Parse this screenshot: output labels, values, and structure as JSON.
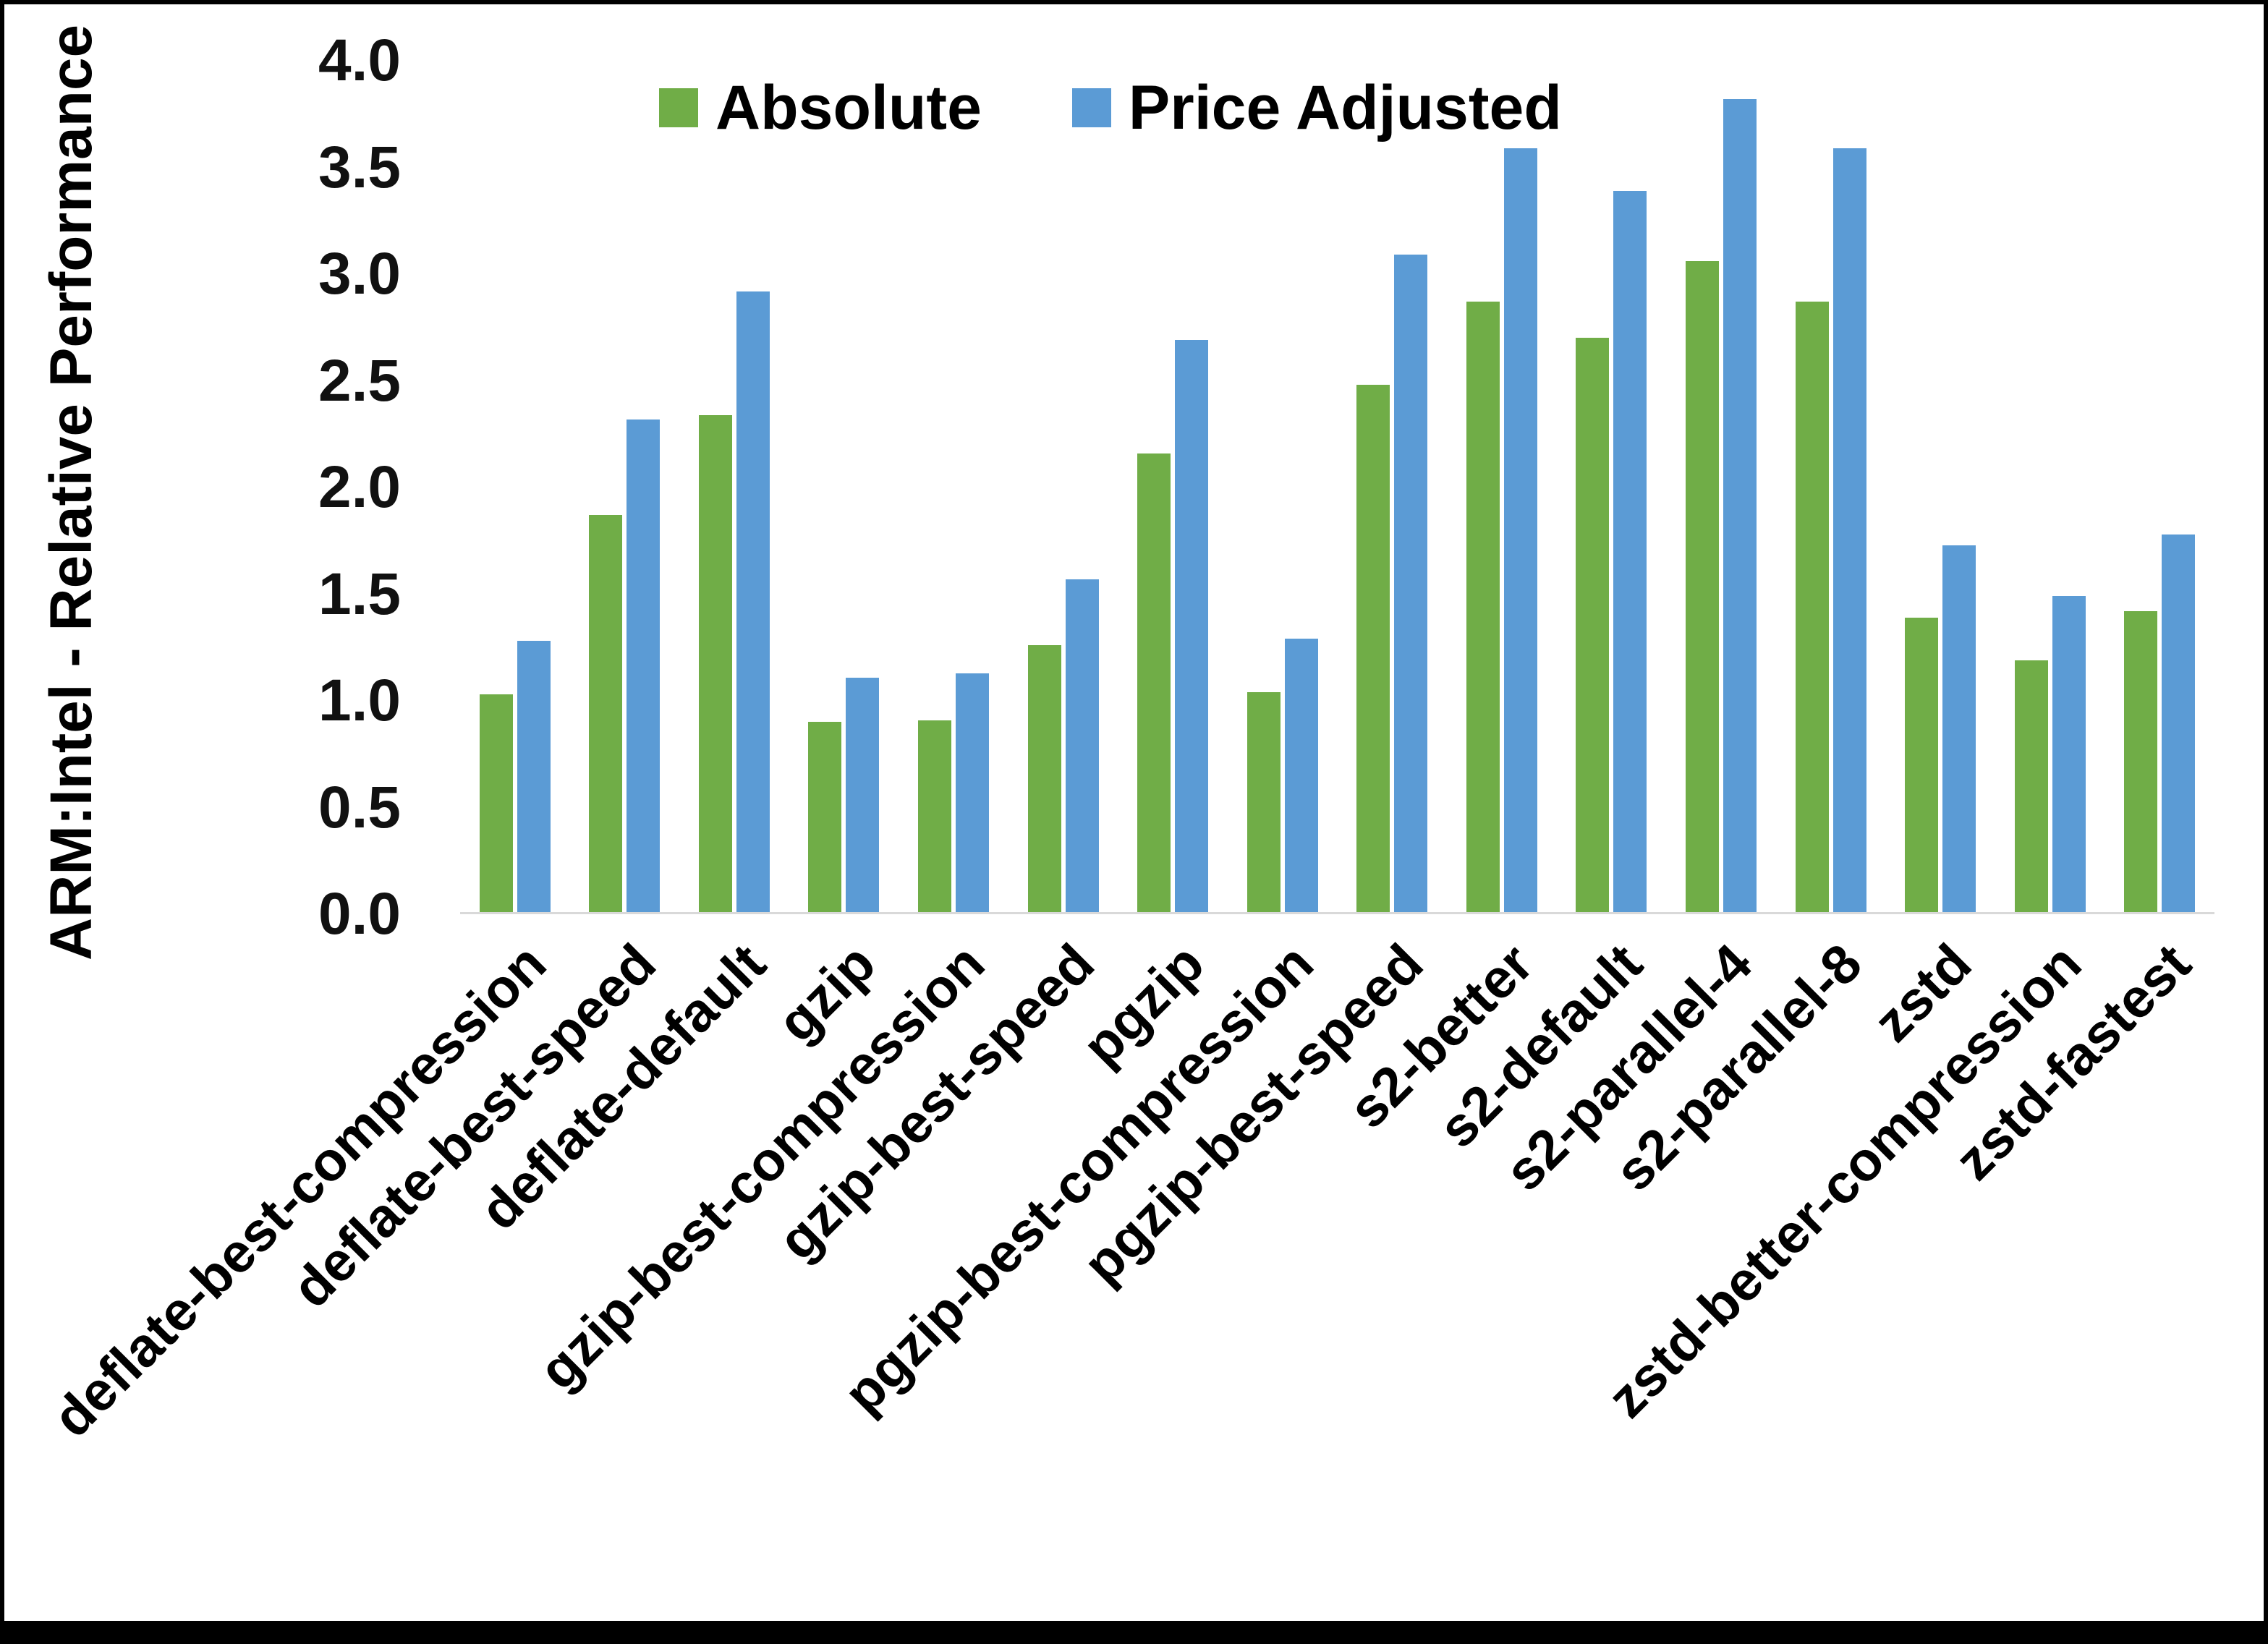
{
  "chart_data": {
    "type": "bar",
    "title": "",
    "xlabel": "",
    "ylabel": "ARM:Intel - Relative Performance",
    "ylim": [
      0.0,
      4.0
    ],
    "ytick_step": 0.5,
    "grid": false,
    "legend_position": "top-center",
    "categories": [
      "deflate-best-compression",
      "deflate-best-speed",
      "deflate-default",
      "gzip",
      "gzip-best-compression",
      "gzip-best-speed",
      "pgzip",
      "pgzip-best-compression",
      "pgzip-best-speed",
      "s2-better",
      "s2-default",
      "s2-parallel-4",
      "s2-parallel-8",
      "zstd",
      "zstd-better-compression",
      "zstd-fastest"
    ],
    "series": [
      {
        "name": "Absolute",
        "color": "#70AD47",
        "values": [
          1.02,
          1.86,
          2.33,
          0.89,
          0.9,
          1.25,
          2.15,
          1.03,
          2.47,
          2.86,
          2.69,
          3.05,
          2.86,
          1.38,
          1.18,
          1.41
        ]
      },
      {
        "name": "Price Adjusted",
        "color": "#5B9BD5",
        "values": [
          1.27,
          2.31,
          2.91,
          1.1,
          1.12,
          1.56,
          2.68,
          1.28,
          3.08,
          3.58,
          3.38,
          3.81,
          3.58,
          1.72,
          1.48,
          1.77
        ]
      }
    ]
  }
}
